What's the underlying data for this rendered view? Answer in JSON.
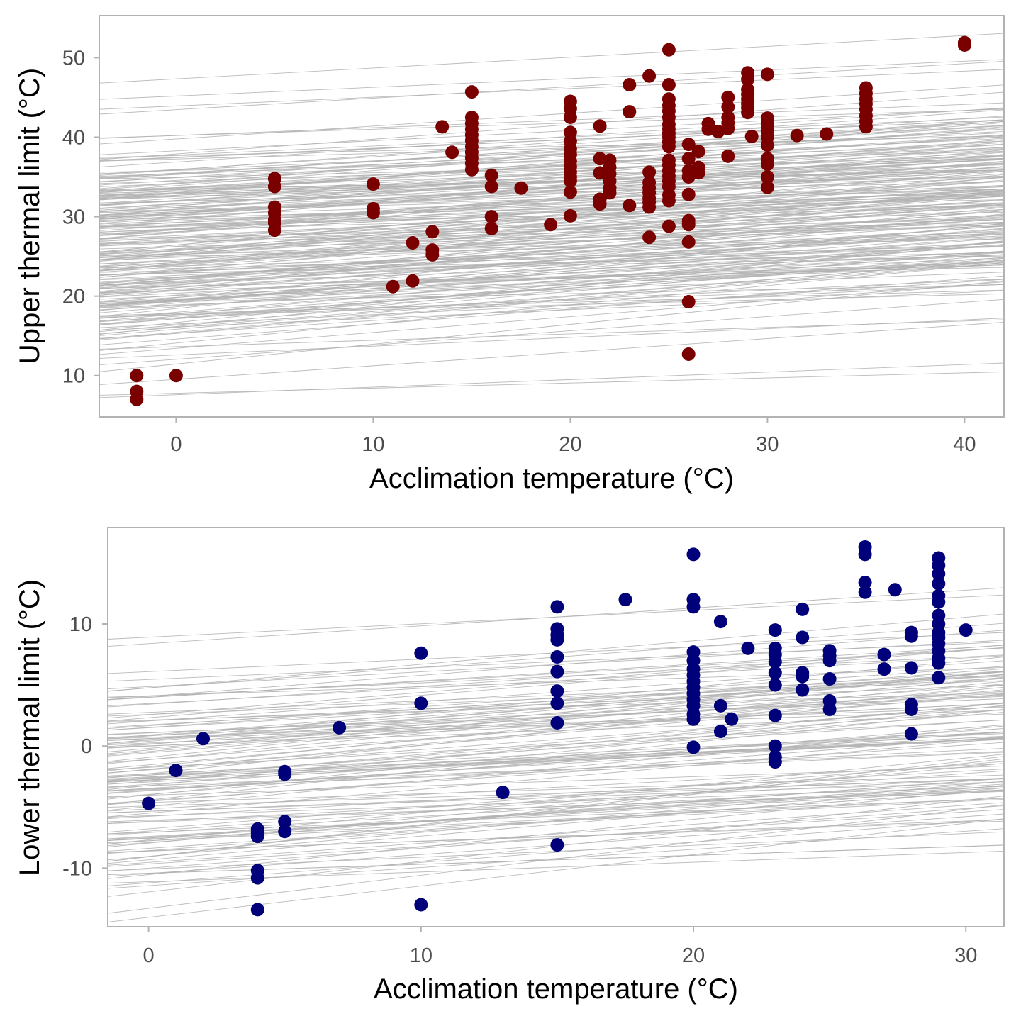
{
  "colors": {
    "background": "#ffffff",
    "panel_border": "#b3b3b3",
    "fit_lines": "#b3b3b3",
    "upper_points": "#7a0000",
    "lower_points": "#00007a",
    "tick_text": "#4d4d4d",
    "axis_title": "#000000"
  },
  "chart_data": [
    {
      "type": "scatter",
      "title": "",
      "xlabel": "Acclimation temperature (°C)",
      "ylabel": "Upper thermal limit (°C)",
      "xlim": [
        -3.9,
        42
      ],
      "ylim": [
        4.8,
        55.3
      ],
      "xticks": [
        0,
        10,
        20,
        30,
        40
      ],
      "yticks": [
        10,
        20,
        30,
        40,
        50
      ],
      "tick_labels_x": [
        "0",
        "10",
        "20",
        "30",
        "40"
      ],
      "tick_labels_y": [
        "10",
        "20",
        "30",
        "40",
        "50"
      ],
      "grid": false,
      "legend": "none",
      "point_color": "#7a0000",
      "fit_lines": {
        "count": 230,
        "intercept_range": [
          6.3,
          48.0
        ],
        "slope_range": [
          0.05,
          0.3
        ],
        "color": "#b3b3b3"
      },
      "points": [
        [
          -2,
          10
        ],
        [
          -2,
          8
        ],
        [
          -2,
          7
        ],
        [
          0,
          10
        ],
        [
          5,
          34.8
        ],
        [
          5,
          33.8
        ],
        [
          5,
          31.2
        ],
        [
          5,
          30.5
        ],
        [
          5,
          29.6
        ],
        [
          5,
          29.2
        ],
        [
          5,
          28.3
        ],
        [
          10,
          34.1
        ],
        [
          10,
          31
        ],
        [
          10,
          30.5
        ],
        [
          11,
          21.2
        ],
        [
          12,
          26.7
        ],
        [
          12,
          21.9
        ],
        [
          13,
          28.1
        ],
        [
          13,
          25.8
        ],
        [
          13,
          25.2
        ],
        [
          13.5,
          41.3
        ],
        [
          14,
          38.1
        ],
        [
          15,
          45.7
        ],
        [
          15,
          42.5
        ],
        [
          15,
          41.7
        ],
        [
          15,
          41
        ],
        [
          15,
          40.3
        ],
        [
          15,
          39.6
        ],
        [
          15,
          38.8
        ],
        [
          15,
          38.1
        ],
        [
          15,
          37.4
        ],
        [
          15,
          36.7
        ],
        [
          15,
          35.9
        ],
        [
          16,
          35.2
        ],
        [
          16,
          33.8
        ],
        [
          16,
          30
        ],
        [
          16,
          28.5
        ],
        [
          17.5,
          33.6
        ],
        [
          19,
          29
        ],
        [
          20,
          44.5
        ],
        [
          20,
          43.6
        ],
        [
          20,
          42.5
        ],
        [
          20,
          40.6
        ],
        [
          20,
          39.5
        ],
        [
          20,
          38.5
        ],
        [
          20,
          37.8
        ],
        [
          20,
          37
        ],
        [
          20,
          36.3
        ],
        [
          20,
          35.6
        ],
        [
          20,
          35
        ],
        [
          20,
          34.5
        ],
        [
          20,
          33.1
        ],
        [
          20,
          30.1
        ],
        [
          21.5,
          41.4
        ],
        [
          21.5,
          37.3
        ],
        [
          21.5,
          35.5
        ],
        [
          21.5,
          32.2
        ],
        [
          21.5,
          31.6
        ],
        [
          22,
          37.1
        ],
        [
          22,
          36.2
        ],
        [
          22,
          35.4
        ],
        [
          22,
          34.5
        ],
        [
          22,
          33.6
        ],
        [
          22,
          33
        ],
        [
          23,
          46.6
        ],
        [
          23,
          43.2
        ],
        [
          23,
          31.4
        ],
        [
          24,
          47.7
        ],
        [
          24,
          35.6
        ],
        [
          24,
          34.3
        ],
        [
          24,
          33.6
        ],
        [
          24,
          33
        ],
        [
          24,
          32.3
        ],
        [
          24,
          31.8
        ],
        [
          24,
          31.2
        ],
        [
          24,
          27.4
        ],
        [
          25,
          51
        ],
        [
          25,
          46.6
        ],
        [
          25,
          44.8
        ],
        [
          25,
          44
        ],
        [
          25,
          43.3
        ],
        [
          25,
          42.5
        ],
        [
          25,
          41.6
        ],
        [
          25,
          41
        ],
        [
          25,
          40.5
        ],
        [
          25,
          40
        ],
        [
          25,
          39.4
        ],
        [
          25,
          38.8
        ],
        [
          25,
          37.1
        ],
        [
          25,
          36.5
        ],
        [
          25,
          35.8
        ],
        [
          25,
          35.1
        ],
        [
          25,
          34.5
        ],
        [
          25,
          33.8
        ],
        [
          25,
          32.7
        ],
        [
          25,
          32
        ],
        [
          25,
          28.8
        ],
        [
          26,
          39.1
        ],
        [
          26,
          37.3
        ],
        [
          26,
          35.8
        ],
        [
          26,
          35
        ],
        [
          26,
          32.8
        ],
        [
          26,
          29.5
        ],
        [
          26,
          29
        ],
        [
          26,
          26.8
        ],
        [
          26,
          19.3
        ],
        [
          26,
          12.7
        ],
        [
          26.5,
          38.2
        ],
        [
          26.5,
          36.2
        ],
        [
          26.5,
          35.5
        ],
        [
          27,
          41.7
        ],
        [
          27,
          41
        ],
        [
          27.5,
          40.7
        ],
        [
          28,
          45
        ],
        [
          28,
          43.8
        ],
        [
          28,
          42.5
        ],
        [
          28,
          41.8
        ],
        [
          28,
          41.1
        ],
        [
          28,
          37.6
        ],
        [
          29,
          48.1
        ],
        [
          29,
          47.3
        ],
        [
          29,
          46
        ],
        [
          29,
          45.4
        ],
        [
          29,
          44.8
        ],
        [
          29,
          44.2
        ],
        [
          29,
          43.7
        ],
        [
          29,
          43.1
        ],
        [
          29.2,
          40.1
        ],
        [
          30,
          47.9
        ],
        [
          30,
          42.4
        ],
        [
          30,
          41.6
        ],
        [
          30,
          40.8
        ],
        [
          30,
          40
        ],
        [
          30,
          39
        ],
        [
          30,
          37.3
        ],
        [
          30,
          36.6
        ],
        [
          30,
          35
        ],
        [
          30,
          33.7
        ],
        [
          31.5,
          40.2
        ],
        [
          33,
          40.4
        ],
        [
          35,
          46.2
        ],
        [
          35,
          45.5
        ],
        [
          35,
          44.8
        ],
        [
          35,
          44.2
        ],
        [
          35,
          43.5
        ],
        [
          35,
          42.7
        ],
        [
          35,
          42
        ],
        [
          35,
          41.3
        ],
        [
          40,
          51.9
        ],
        [
          40,
          51.6
        ]
      ]
    },
    {
      "type": "scatter",
      "title": "",
      "xlabel": "Acclimation temperature (°C)",
      "ylabel": "Lower thermal limit (°C)",
      "xlim": [
        -1.5,
        31.4
      ],
      "ylim": [
        -14.8,
        17.9
      ],
      "xticks": [
        0,
        10,
        20,
        30
      ],
      "yticks": [
        -10,
        0,
        10
      ],
      "tick_labels_x": [
        "0",
        "10",
        "20",
        "30"
      ],
      "tick_labels_y": [
        "-10",
        "0",
        "10"
      ],
      "grid": false,
      "legend": "none",
      "point_color": "#00007a",
      "fit_lines": {
        "count": 130,
        "intercept_range": [
          -15.5,
          11.7
        ],
        "slope_range": [
          0.07,
          0.3
        ],
        "color": "#b3b3b3"
      },
      "points": [
        [
          0,
          -4.7
        ],
        [
          1,
          -2
        ],
        [
          2,
          0.6
        ],
        [
          4,
          -6.8
        ],
        [
          4,
          -7.1
        ],
        [
          4,
          -7.4
        ],
        [
          4,
          -10.2
        ],
        [
          4,
          -10.8
        ],
        [
          4,
          -13.4
        ],
        [
          5,
          -2.1
        ],
        [
          5,
          -2.3
        ],
        [
          5,
          -6.2
        ],
        [
          5,
          -7
        ],
        [
          7,
          1.5
        ],
        [
          10,
          7.6
        ],
        [
          10,
          3.5
        ],
        [
          10,
          -13
        ],
        [
          13,
          -3.8
        ],
        [
          15,
          11.4
        ],
        [
          15,
          9.6
        ],
        [
          15,
          9.1
        ],
        [
          15,
          8.7
        ],
        [
          15,
          7.3
        ],
        [
          15,
          6.1
        ],
        [
          15,
          4.5
        ],
        [
          15,
          3.5
        ],
        [
          15,
          1.9
        ],
        [
          15,
          -8.1
        ],
        [
          17.5,
          12
        ],
        [
          20,
          15.7
        ],
        [
          20,
          12
        ],
        [
          20,
          11.4
        ],
        [
          20,
          7.7
        ],
        [
          20,
          7
        ],
        [
          20,
          6.3
        ],
        [
          20,
          5.8
        ],
        [
          20,
          5.3
        ],
        [
          20,
          4.8
        ],
        [
          20,
          4.3
        ],
        [
          20,
          3.8
        ],
        [
          20,
          3.3
        ],
        [
          20,
          2.6
        ],
        [
          20,
          2.2
        ],
        [
          20,
          -0.1
        ],
        [
          21,
          10.2
        ],
        [
          21,
          3.3
        ],
        [
          21,
          1.2
        ],
        [
          21.4,
          2.2
        ],
        [
          22,
          8
        ],
        [
          23,
          9.5
        ],
        [
          23,
          8
        ],
        [
          23,
          7.5
        ],
        [
          23,
          6.9
        ],
        [
          23,
          6
        ],
        [
          23,
          5
        ],
        [
          23,
          2.5
        ],
        [
          23,
          0
        ],
        [
          23,
          -0.9
        ],
        [
          23,
          -1.3
        ],
        [
          24,
          11.2
        ],
        [
          24,
          8.9
        ],
        [
          24,
          6
        ],
        [
          24,
          5.7
        ],
        [
          24,
          4.6
        ],
        [
          25,
          7.8
        ],
        [
          25,
          7.4
        ],
        [
          25,
          7
        ],
        [
          25,
          5.5
        ],
        [
          25,
          3.7
        ],
        [
          25,
          3
        ],
        [
          26.3,
          16.3
        ],
        [
          26.3,
          15.7
        ],
        [
          26.3,
          13.4
        ],
        [
          26.3,
          12.6
        ],
        [
          27,
          7.5
        ],
        [
          27,
          6.3
        ],
        [
          27.4,
          12.8
        ],
        [
          28,
          9.3
        ],
        [
          28,
          9
        ],
        [
          28,
          6.4
        ],
        [
          28,
          3.4
        ],
        [
          28,
          3
        ],
        [
          28,
          1
        ],
        [
          29,
          15.4
        ],
        [
          29,
          14.8
        ],
        [
          29,
          14.1
        ],
        [
          29,
          13.3
        ],
        [
          29,
          12.3
        ],
        [
          29,
          11.8
        ],
        [
          29,
          10.7
        ],
        [
          29,
          10
        ],
        [
          29,
          9.3
        ],
        [
          29,
          8.9
        ],
        [
          29,
          8.4
        ],
        [
          29,
          7.8
        ],
        [
          29,
          7.2
        ],
        [
          29,
          6.8
        ],
        [
          29,
          5.6
        ],
        [
          30,
          9.5
        ]
      ]
    }
  ]
}
